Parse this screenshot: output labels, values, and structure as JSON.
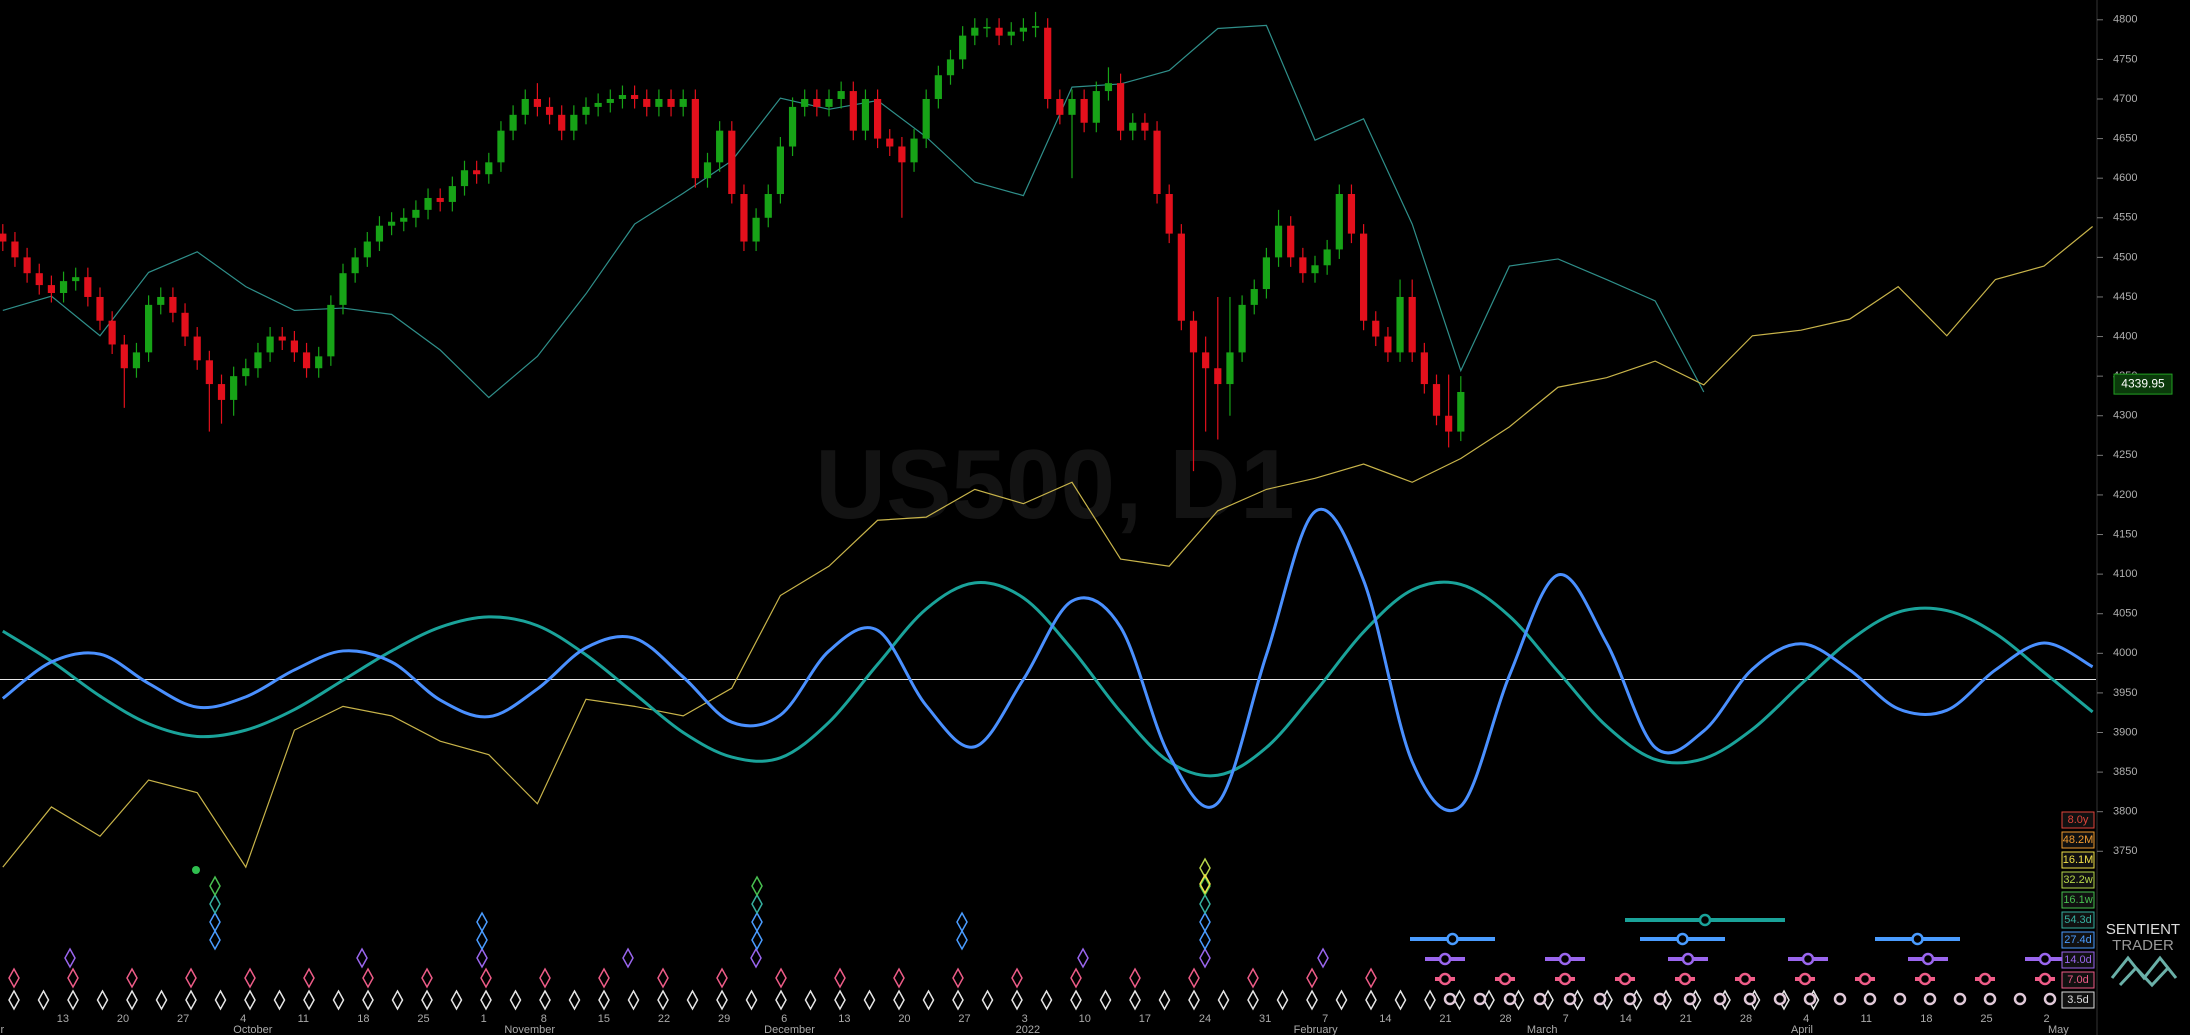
{
  "chart_data": {
    "type": "candlestick",
    "watermark": "US500, D1",
    "brand": [
      "SENTIENT",
      "TRADER"
    ],
    "ylim": [
      3518,
      4825
    ],
    "yticks": [
      4800,
      4750,
      4700,
      4650,
      4600,
      4550,
      4500,
      4450,
      4400,
      4350,
      4300,
      4250,
      4200,
      4150,
      4100,
      4050,
      4000,
      3950,
      3900,
      3850,
      3800,
      3750
    ],
    "last_price": 4339.95,
    "reference_level": 3967,
    "up_color": "#17a317",
    "down_color": "#e3101c",
    "day_labels": [
      "13",
      "20",
      "27",
      "4",
      "11",
      "18",
      "25",
      "1",
      "8",
      "15",
      "22",
      "29",
      "6",
      "13",
      "20",
      "27",
      "3",
      "10",
      "17",
      "24",
      "31",
      "7",
      "14",
      "21",
      "28",
      "7",
      "14",
      "21",
      "28",
      "4",
      "11",
      "18",
      "25",
      "2"
    ],
    "month_labels": [
      "er",
      "October",
      "November",
      "December",
      "2022",
      "February",
      "March",
      "April",
      "May"
    ],
    "cycles": [
      {
        "label": "8.0y",
        "color": "#e0443a"
      },
      {
        "label": "48.2M",
        "color": "#f09a30"
      },
      {
        "label": "16.1M",
        "color": "#f0e048"
      },
      {
        "label": "32.2w",
        "color": "#b6d64a"
      },
      {
        "label": "16.1w",
        "color": "#48c050"
      },
      {
        "label": "54.3d",
        "color": "#36b0a0"
      },
      {
        "label": "27.4d",
        "color": "#4a9cff"
      },
      {
        "label": "14.0d",
        "color": "#9a66ee"
      },
      {
        "label": "7.0d",
        "color": "#ee5c88"
      },
      {
        "label": "3.5d",
        "color": "#dddddd"
      }
    ],
    "candles": [
      [
        4530,
        4542,
        4508,
        4520
      ],
      [
        4520,
        4532,
        4488,
        4500
      ],
      [
        4500,
        4512,
        4468,
        4480
      ],
      [
        4480,
        4492,
        4453,
        4465
      ],
      [
        4465,
        4477,
        4443,
        4455
      ],
      [
        4455,
        4482,
        4443,
        4470
      ],
      [
        4470,
        4487,
        4458,
        4475
      ],
      [
        4475,
        4487,
        4438,
        4450
      ],
      [
        4450,
        4462,
        4408,
        4420
      ],
      [
        4420,
        4432,
        4378,
        4390
      ],
      [
        4390,
        4402,
        4310,
        4360
      ],
      [
        4360,
        4392,
        4348,
        4380
      ],
      [
        4380,
        4452,
        4368,
        4440
      ],
      [
        4440,
        4462,
        4428,
        4450
      ],
      [
        4450,
        4462,
        4418,
        4430
      ],
      [
        4430,
        4442,
        4388,
        4400
      ],
      [
        4400,
        4412,
        4358,
        4370
      ],
      [
        4370,
        4382,
        4280,
        4340
      ],
      [
        4340,
        4352,
        4290,
        4320
      ],
      [
        4320,
        4362,
        4300,
        4350
      ],
      [
        4350,
        4372,
        4338,
        4360
      ],
      [
        4360,
        4392,
        4348,
        4380
      ],
      [
        4380,
        4412,
        4368,
        4400
      ],
      [
        4400,
        4412,
        4383,
        4395
      ],
      [
        4395,
        4407,
        4368,
        4380
      ],
      [
        4380,
        4392,
        4348,
        4360
      ],
      [
        4360,
        4387,
        4348,
        4375
      ],
      [
        4375,
        4452,
        4363,
        4440
      ],
      [
        4440,
        4492,
        4428,
        4480
      ],
      [
        4480,
        4512,
        4468,
        4500
      ],
      [
        4500,
        4532,
        4488,
        4520
      ],
      [
        4520,
        4552,
        4508,
        4540
      ],
      [
        4540,
        4557,
        4528,
        4545
      ],
      [
        4545,
        4562,
        4533,
        4550
      ],
      [
        4550,
        4572,
        4538,
        4560
      ],
      [
        4560,
        4587,
        4548,
        4575
      ],
      [
        4575,
        4587,
        4558,
        4570
      ],
      [
        4570,
        4602,
        4558,
        4590
      ],
      [
        4590,
        4622,
        4578,
        4610
      ],
      [
        4610,
        4622,
        4593,
        4605
      ],
      [
        4605,
        4632,
        4593,
        4620
      ],
      [
        4620,
        4672,
        4608,
        4660
      ],
      [
        4660,
        4692,
        4648,
        4680
      ],
      [
        4680,
        4712,
        4668,
        4700
      ],
      [
        4700,
        4720,
        4678,
        4690
      ],
      [
        4690,
        4702,
        4668,
        4680
      ],
      [
        4680,
        4692,
        4648,
        4660
      ],
      [
        4660,
        4692,
        4648,
        4680
      ],
      [
        4680,
        4702,
        4668,
        4690
      ],
      [
        4690,
        4707,
        4678,
        4695
      ],
      [
        4695,
        4712,
        4683,
        4700
      ],
      [
        4700,
        4717,
        4688,
        4705
      ],
      [
        4705,
        4717,
        4688,
        4700
      ],
      [
        4700,
        4712,
        4678,
        4690
      ],
      [
        4690,
        4712,
        4678,
        4700
      ],
      [
        4700,
        4712,
        4678,
        4690
      ],
      [
        4690,
        4712,
        4678,
        4700
      ],
      [
        4700,
        4712,
        4588,
        4600
      ],
      [
        4600,
        4632,
        4588,
        4620
      ],
      [
        4620,
        4672,
        4608,
        4660
      ],
      [
        4660,
        4672,
        4568,
        4580
      ],
      [
        4580,
        4592,
        4508,
        4520
      ],
      [
        4520,
        4562,
        4508,
        4550
      ],
      [
        4550,
        4592,
        4538,
        4580
      ],
      [
        4580,
        4652,
        4568,
        4640
      ],
      [
        4640,
        4702,
        4628,
        4690
      ],
      [
        4690,
        4712,
        4678,
        4700
      ],
      [
        4700,
        4712,
        4678,
        4690
      ],
      [
        4690,
        4712,
        4678,
        4700
      ],
      [
        4700,
        4722,
        4688,
        4710
      ],
      [
        4710,
        4722,
        4648,
        4660
      ],
      [
        4660,
        4712,
        4648,
        4700
      ],
      [
        4700,
        4712,
        4638,
        4650
      ],
      [
        4650,
        4662,
        4628,
        4640
      ],
      [
        4640,
        4652,
        4550,
        4620
      ],
      [
        4620,
        4662,
        4608,
        4650
      ],
      [
        4650,
        4712,
        4638,
        4700
      ],
      [
        4700,
        4742,
        4688,
        4730
      ],
      [
        4730,
        4762,
        4718,
        4750
      ],
      [
        4750,
        4792,
        4738,
        4780
      ],
      [
        4780,
        4802,
        4768,
        4790
      ],
      [
        4790,
        4802,
        4778,
        4791
      ],
      [
        4790,
        4802,
        4768,
        4780
      ],
      [
        4780,
        4797,
        4768,
        4785
      ],
      [
        4785,
        4802,
        4773,
        4790
      ],
      [
        4790,
        4810,
        4778,
        4792
      ],
      [
        4790,
        4802,
        4688,
        4700
      ],
      [
        4700,
        4712,
        4668,
        4680
      ],
      [
        4680,
        4712,
        4600,
        4700
      ],
      [
        4700,
        4712,
        4658,
        4670
      ],
      [
        4670,
        4722,
        4658,
        4710
      ],
      [
        4710,
        4740,
        4698,
        4720
      ],
      [
        4720,
        4732,
        4648,
        4660
      ],
      [
        4660,
        4682,
        4648,
        4670
      ],
      [
        4670,
        4682,
        4648,
        4660
      ],
      [
        4660,
        4672,
        4568,
        4580
      ],
      [
        4580,
        4592,
        4518,
        4530
      ],
      [
        4530,
        4542,
        4408,
        4420
      ],
      [
        4420,
        4432,
        4230,
        4380
      ],
      [
        4380,
        4400,
        4280,
        4360
      ],
      [
        4360,
        4450,
        4270,
        4340
      ],
      [
        4340,
        4450,
        4300,
        4380
      ],
      [
        4380,
        4452,
        4368,
        4440
      ],
      [
        4440,
        4472,
        4428,
        4460
      ],
      [
        4460,
        4512,
        4448,
        4500
      ],
      [
        4500,
        4560,
        4488,
        4540
      ],
      [
        4540,
        4552,
        4488,
        4500
      ],
      [
        4500,
        4512,
        4468,
        4480
      ],
      [
        4480,
        4502,
        4468,
        4490
      ],
      [
        4490,
        4522,
        4478,
        4510
      ],
      [
        4510,
        4592,
        4498,
        4580
      ],
      [
        4580,
        4592,
        4518,
        4530
      ],
      [
        4530,
        4542,
        4408,
        4420
      ],
      [
        4420,
        4432,
        4388,
        4400
      ],
      [
        4400,
        4412,
        4368,
        4380
      ],
      [
        4380,
        4472,
        4368,
        4450
      ],
      [
        4450,
        4472,
        4368,
        4380
      ],
      [
        4380,
        4392,
        4328,
        4340
      ],
      [
        4340,
        4352,
        4288,
        4300
      ],
      [
        4300,
        4352,
        4260,
        4280
      ],
      [
        4280,
        4350,
        4268,
        4330
      ]
    ],
    "series": [
      {
        "color": "#2f8f8a",
        "style": "thin",
        "values": [
          4433,
          4451,
          4401,
          4481,
          4507,
          4463,
          4433,
          4436,
          4428,
          4383,
          4323,
          4375,
          4454,
          4542,
          4581,
          4622,
          4701,
          4687,
          4698,
          4652,
          4595,
          4578,
          4715,
          4719,
          4736,
          4789,
          4793,
          4648,
          4675,
          4542,
          4357,
          4489,
          4498,
          4472,
          4445,
          4330,
          null,
          null,
          null,
          null,
          null,
          null,
          null,
          null
        ]
      },
      {
        "color": "#c8b44a",
        "style": "thin",
        "values": [
          3730,
          3806,
          3769,
          3840,
          3824,
          3730,
          3903,
          3933,
          3921,
          3889,
          3872,
          3810,
          3942,
          3933,
          3921,
          3956,
          4073,
          4110,
          4168,
          4172,
          4207,
          4189,
          4216,
          4119,
          4110,
          4180,
          4207,
          4221,
          4239,
          4216,
          4246,
          4286,
          4336,
          4348,
          4369,
          4339,
          4401,
          4408,
          4422,
          4463,
          4401,
          4472,
          4489,
          4539
        ]
      },
      {
        "color": "#1aa39a",
        "style": "wave",
        "values": [
          4028,
          3990,
          3946,
          3911,
          3895,
          3903,
          3929,
          3966,
          4003,
          4033,
          4046,
          4035,
          3998,
          3949,
          3900,
          3869,
          3868,
          3913,
          3986,
          4056,
          4089,
          4070,
          4005,
          3926,
          3863,
          3846,
          3881,
          3951,
          4027,
          4080,
          4087,
          4047,
          3977,
          3908,
          3866,
          3867,
          3904,
          3961,
          4016,
          4052,
          4054,
          4025,
          3976,
          3926
        ]
      },
      {
        "color": "#4a90ff",
        "style": "wave",
        "values": [
          3943,
          3989,
          3999,
          3962,
          3932,
          3945,
          3979,
          4003,
          3989,
          3941,
          3920,
          3955,
          4007,
          4019,
          3970,
          3913,
          3922,
          4003,
          4029,
          3934,
          3882,
          3967,
          4066,
          4033,
          3871,
          3811,
          3998,
          4179,
          4092,
          3863,
          3807,
          3972,
          4099,
          4013,
          3881,
          3902,
          3980,
          4012,
          3979,
          3930,
          3928,
          3979,
          4013,
          3983
        ]
      }
    ]
  }
}
